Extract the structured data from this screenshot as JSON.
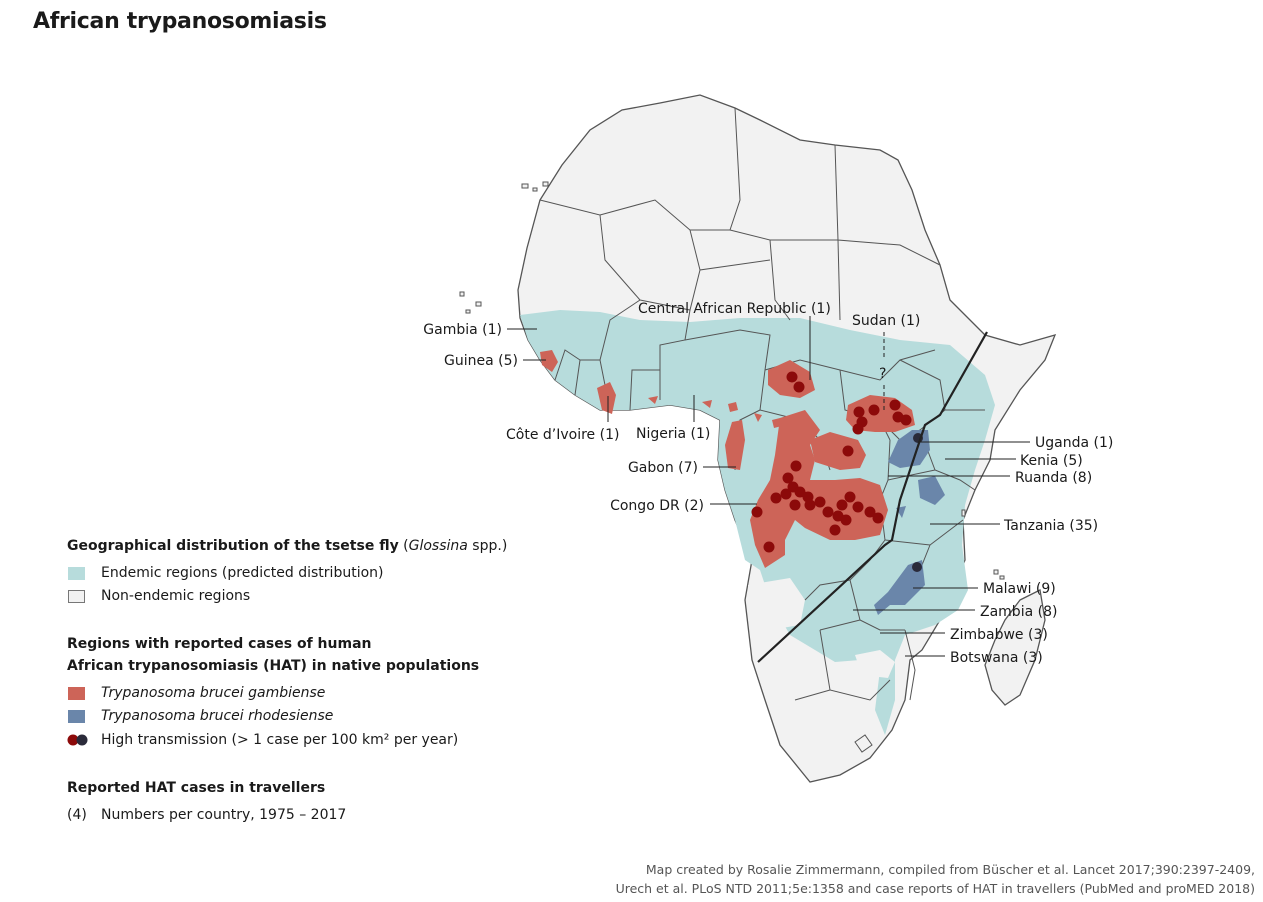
{
  "title": "African trypanosomiasis",
  "countries": {
    "gambia": "Gambia (1)",
    "guinea": "Guinea (5)",
    "cote_divoire": "Côte d’Ivoire (1)",
    "nigeria": "Nigeria (1)",
    "gabon": "Gabon (7)",
    "congo_dr": "Congo DR (2)",
    "car": "Central African Republic (1)",
    "sudan": "Sudan (1)",
    "question": "?",
    "uganda": "Uganda (1)",
    "kenia": "Kenia (5)",
    "ruanda": "Ruanda (8)",
    "tanzania": "Tanzania (35)",
    "malawi": "Malawi (9)",
    "zambia": "Zambia (8)",
    "zimbabwe": "Zimbabwe (3)",
    "botswana": "Botswana (3)"
  },
  "legend": {
    "tsetse_heading": "Geographical distribution of the tsetse fly",
    "tsetse_heading_italic": "Glossina",
    "tsetse_heading_suffix": " spp.)",
    "tsetse_heading_paren": " (",
    "endemic": "Endemic regions (predicted distribution)",
    "non_endemic": "Non-endemic regions",
    "hat_heading_1": "Regions with reported cases of human",
    "hat_heading_2": "African trypanosomiasis (HAT) in native populations",
    "gambiense": "Trypanosoma brucei gambiense",
    "rhodesiense": "Trypanosoma brucei rhodesiense",
    "high_transmission": "High transmission (> 1 case per 100 km² per year)",
    "travellers_heading": "Reported HAT cases in travellers",
    "numbers_marker": "(4)",
    "numbers_text": "Numbers per country, 1975 – 2017"
  },
  "colors": {
    "endemic": "#b7dcdc",
    "non_endemic": "#f2f2f2",
    "gambiense": "#cd6458",
    "rhodesiense": "#6a86aa",
    "dot_gambiense": "#8c0a0a",
    "dot_rhodesiense": "#2a2a3a"
  },
  "credit": {
    "line1": "Map created by Rosalie Zimmermann, compiled from Büscher et al. Lancet 2017;390:2397-2409,",
    "line2": "Urech et al. PLoS NTD 2011;5e:1358 and case reports of HAT in travellers (PubMed and proMED 2018)"
  }
}
